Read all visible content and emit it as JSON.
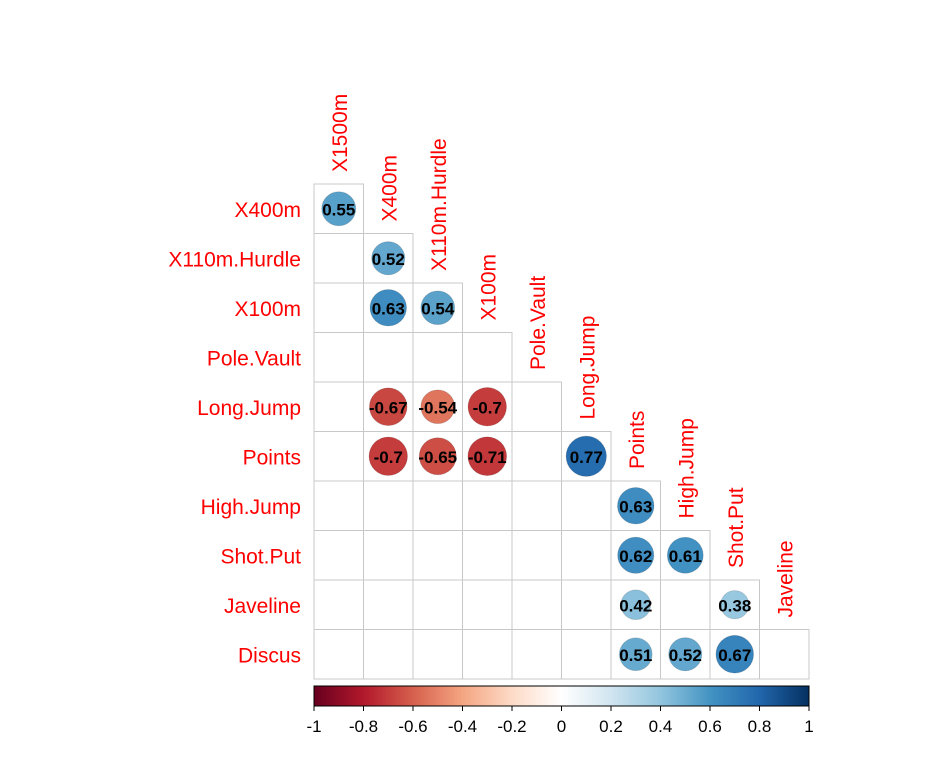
{
  "chart_data": {
    "type": "heatmap",
    "style": "lower-triangular correlation plot with circle markers",
    "columns": [
      "X1500m",
      "X400m",
      "X110m.Hurdle",
      "X100m",
      "Pole.Vault",
      "Long.Jump",
      "Points",
      "High.Jump",
      "Shot.Put",
      "Javeline"
    ],
    "rows": [
      "X400m",
      "X110m.Hurdle",
      "X100m",
      "Pole.Vault",
      "Long.Jump",
      "Points",
      "High.Jump",
      "Shot.Put",
      "Javeline",
      "Discus"
    ],
    "cells": [
      {
        "row": "X400m",
        "col": "X1500m",
        "value": 0.55,
        "label": "0.55"
      },
      {
        "row": "X110m.Hurdle",
        "col": "X400m",
        "value": 0.52,
        "label": "0.52"
      },
      {
        "row": "X100m",
        "col": "X400m",
        "value": 0.63,
        "label": "0.63"
      },
      {
        "row": "X100m",
        "col": "X110m.Hurdle",
        "value": 0.54,
        "label": "0.54"
      },
      {
        "row": "Long.Jump",
        "col": "X400m",
        "value": -0.67,
        "label": "-0.67"
      },
      {
        "row": "Long.Jump",
        "col": "X110m.Hurdle",
        "value": -0.54,
        "label": "-0.54"
      },
      {
        "row": "Long.Jump",
        "col": "X100m",
        "value": -0.7,
        "label": "-0.7"
      },
      {
        "row": "Points",
        "col": "X400m",
        "value": -0.7,
        "label": "-0.7"
      },
      {
        "row": "Points",
        "col": "X110m.Hurdle",
        "value": -0.65,
        "label": "-0.65"
      },
      {
        "row": "Points",
        "col": "X100m",
        "value": -0.71,
        "label": "-0.71"
      },
      {
        "row": "Points",
        "col": "Long.Jump",
        "value": 0.77,
        "label": "0.77"
      },
      {
        "row": "High.Jump",
        "col": "Points",
        "value": 0.63,
        "label": "0.63"
      },
      {
        "row": "Shot.Put",
        "col": "Points",
        "value": 0.62,
        "label": "0.62"
      },
      {
        "row": "Shot.Put",
        "col": "High.Jump",
        "value": 0.61,
        "label": "0.61"
      },
      {
        "row": "Javeline",
        "col": "Points",
        "value": 0.42,
        "label": "0.42"
      },
      {
        "row": "Javeline",
        "col": "Shot.Put",
        "value": 0.38,
        "label": "0.38"
      },
      {
        "row": "Discus",
        "col": "Points",
        "value": 0.51,
        "label": "0.51"
      },
      {
        "row": "Discus",
        "col": "High.Jump",
        "value": 0.52,
        "label": "0.52"
      },
      {
        "row": "Discus",
        "col": "Shot.Put",
        "value": 0.67,
        "label": "0.67"
      }
    ],
    "colorbar": {
      "range": [
        -1,
        1
      ],
      "ticks": [
        "-1",
        "-0.8",
        "-0.6",
        "-0.4",
        "-0.2",
        "0",
        "0.2",
        "0.4",
        "0.6",
        "0.8",
        "1"
      ],
      "palette": [
        "#67001F",
        "#B2182B",
        "#D6604D",
        "#F4A582",
        "#FDDBC7",
        "#FFFFFF",
        "#D1E5F0",
        "#92C5DE",
        "#4393C3",
        "#2166AC",
        "#053061"
      ]
    },
    "colors": {
      "label_text": "#FF0000",
      "grid": "#C8C8C8",
      "value_text": "#000000"
    }
  }
}
